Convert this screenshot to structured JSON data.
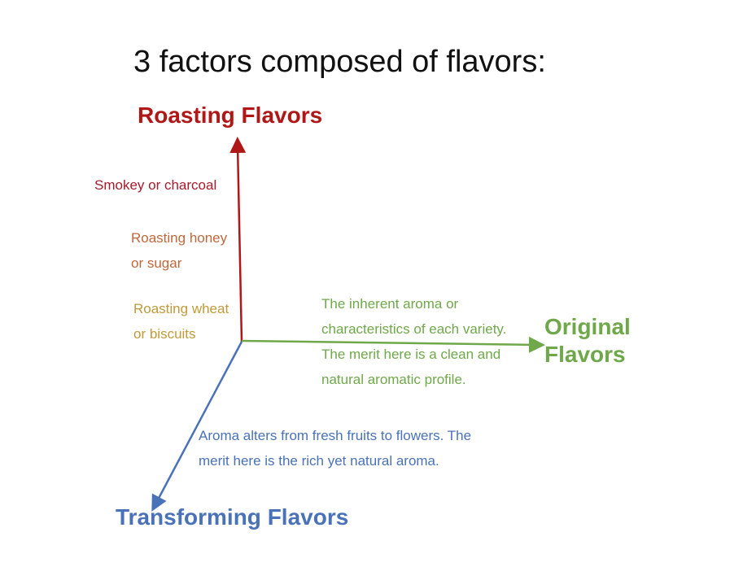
{
  "title": "3 factors composed of flavors:",
  "axes": {
    "roasting": {
      "label": "Roasting Flavors",
      "color": "#b01818"
    },
    "original": {
      "label_line1": "Original",
      "label_line2": "Flavors",
      "color": "#6fa84a"
    },
    "transforming": {
      "label": "Transforming Flavors",
      "color": "#4a72b8"
    }
  },
  "roasting_levels": [
    {
      "line1": "Smokey or charcoal",
      "line2": "",
      "color": "#a61c2c"
    },
    {
      "line1": "Roasting honey",
      "line2": "or sugar",
      "color": "#c0683c"
    },
    {
      "line1": "Roasting wheat",
      "line2": "or biscuits",
      "color": "#c09a3a"
    }
  ],
  "original_desc": [
    "The inherent aroma or",
    "characteristics of each variety.",
    "The merit here is a clean and",
    "natural aromatic profile."
  ],
  "transforming_desc": [
    "Aroma alters from fresh fruits to flowers. The",
    "merit here is the rich yet natural aroma."
  ]
}
